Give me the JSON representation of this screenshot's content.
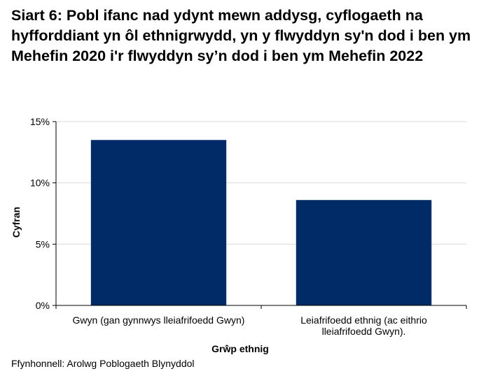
{
  "chart_data": {
    "type": "bar",
    "title": "Siart 6: Pobl ifanc nad ydynt mewn addysg, cyflogaeth na hyfforddiant yn ôl ethnigrwydd, yn y flwyddyn sy'n dod i ben ym Mehefin 2020 i'r flwyddyn sy’n dod i ben ym Mehefin 2022",
    "categories": [
      [
        "Gwyn (gan gynnwys lleiafrifoedd Gwyn)"
      ],
      [
        "Leiafrifoedd ethnig (ac eithrio",
        "lleiafrifoedd Gwyn)."
      ]
    ],
    "values": [
      13.5,
      8.6
    ],
    "ylim": [
      0,
      15
    ],
    "yticks": [
      0,
      5,
      10,
      15
    ],
    "ytick_labels": [
      "0%",
      "5%",
      "10%",
      "15%"
    ],
    "xlabel": "Grŵp ethnig",
    "ylabel": "Cyfran",
    "grid": true,
    "bar_color": "#002b66",
    "grid_color": "#d9d9d9"
  },
  "source": "Ffynhonnell: Arolwg Poblogaeth Blynyddol"
}
